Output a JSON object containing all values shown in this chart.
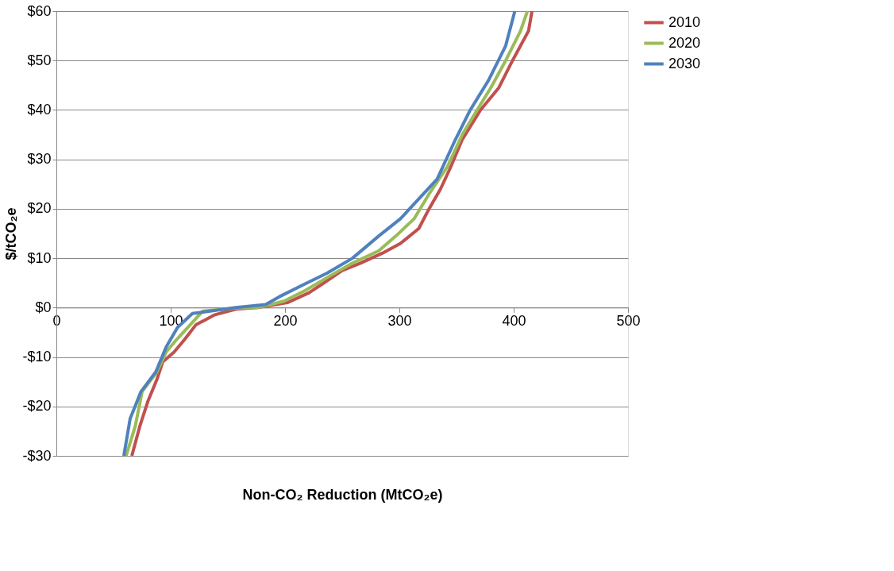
{
  "chart_data": {
    "type": "line",
    "xlabel": "Non-CO₂ Reduction (MtCO₂e)",
    "ylabel": "$/tCO₂e",
    "xlim": [
      0,
      500
    ],
    "xticks": [
      0,
      100,
      200,
      300,
      400,
      500
    ],
    "ylim": [
      -30,
      60
    ],
    "yticks": [
      {
        "value": -30,
        "label": "-$30"
      },
      {
        "value": -20,
        "label": "-$20"
      },
      {
        "value": -10,
        "label": "-$10"
      },
      {
        "value": 0,
        "label": "$0"
      },
      {
        "value": 10,
        "label": "$10"
      },
      {
        "value": 20,
        "label": "$20"
      },
      {
        "value": 30,
        "label": "$30"
      },
      {
        "value": 40,
        "label": "$40"
      },
      {
        "value": 50,
        "label": "$50"
      },
      {
        "value": 60,
        "label": "$60"
      }
    ],
    "grid": "y",
    "legend": "right",
    "line_style": "solid",
    "marker": "none",
    "series": [
      {
        "name": "2010",
        "color": "#c0504d",
        "x": [
          66,
          73,
          80,
          88,
          93,
          103,
          112,
          122,
          138,
          157,
          176,
          202,
          221,
          234,
          250,
          266,
          285,
          301,
          317,
          326,
          336,
          345,
          355,
          371,
          387,
          399,
          413,
          416
        ],
        "values": [
          -30,
          -24,
          -19,
          -14.5,
          -11,
          -9,
          -6.5,
          -3.5,
          -1.5,
          -0.3,
          0,
          1,
          3,
          5,
          7.5,
          9,
          11,
          13,
          16,
          20,
          24,
          28.5,
          34,
          40,
          44.5,
          50,
          56,
          60
        ]
      },
      {
        "name": "2020",
        "color": "#9bbb59",
        "x": [
          61,
          69,
          75,
          88,
          96,
          105,
          117,
          128,
          157,
          176,
          199,
          218,
          240,
          259,
          282,
          297,
          313,
          326,
          342,
          355,
          368,
          380,
          393,
          406,
          412
        ],
        "values": [
          -30,
          -24,
          -17,
          -13,
          -9,
          -6.5,
          -3.5,
          -0.7,
          -0.1,
          0,
          1.3,
          3.5,
          6.5,
          9,
          11.5,
          14.5,
          18,
          23,
          28.5,
          35,
          40,
          44.5,
          50,
          56,
          60
        ]
      },
      {
        "name": "2030",
        "color": "#4f81bd",
        "x": [
          59,
          64.5,
          74,
          87,
          96,
          106,
          119,
          157,
          183,
          195,
          215,
          237,
          259,
          282,
          301,
          313,
          333,
          349,
          362,
          378,
          393,
          401
        ],
        "values": [
          -30,
          -22.5,
          -17,
          -13,
          -8,
          -4,
          -1.2,
          0,
          0.6,
          2.2,
          4.5,
          7,
          10,
          14.5,
          18,
          21,
          26,
          34,
          40,
          46,
          53,
          60
        ]
      }
    ]
  }
}
